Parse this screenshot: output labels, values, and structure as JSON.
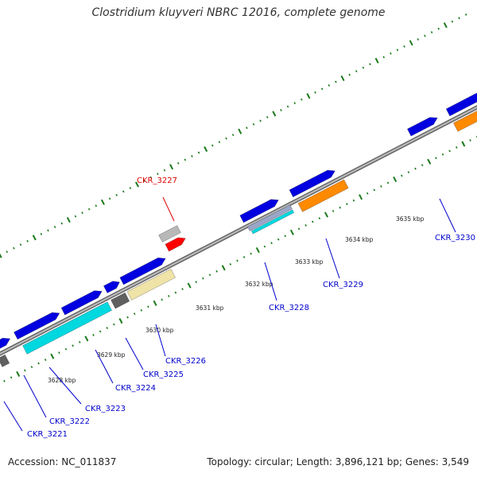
{
  "title": "Clostridium kluyveri NBRC 12016, complete genome",
  "footer": {
    "accession": "Accession: NC_011837",
    "summary": "Topology: circular; Length: 3,896,121 bp; Genes: 3,549"
  },
  "colors": {
    "backbone": "#8a8a8a",
    "tick": "#1a7a1a",
    "blue_gene": "#0000e0",
    "cyan_gene": "#00d8e0",
    "gray_gene": "#606060",
    "light_gray_gene": "#b8b8b8",
    "beige_gene": "#efe3a8",
    "orange_gene": "#ff8a00",
    "red_gene": "#ff0000",
    "label_blue": "#0000cc",
    "label_red": "#dd0000"
  },
  "kbp_labels": [
    "3628 kbp",
    "3629 kbp",
    "3630 kbp",
    "3631 kbp",
    "3632 kbp",
    "3633 kbp",
    "3634 kbp",
    "3635 kbp"
  ],
  "gene_labels": [
    {
      "text": "CKR_3221",
      "color": "blue"
    },
    {
      "text": "CKR_3222",
      "color": "blue"
    },
    {
      "text": "CKR_3223",
      "color": "blue"
    },
    {
      "text": "CKR_3224",
      "color": "blue"
    },
    {
      "text": "CKR_3225",
      "color": "blue"
    },
    {
      "text": "CKR_3226",
      "color": "blue"
    },
    {
      "text": "CKR_3227",
      "color": "red"
    },
    {
      "text": "CKR_3228",
      "color": "blue"
    },
    {
      "text": "CKR_3229",
      "color": "blue"
    },
    {
      "text": "CKR_3230",
      "color": "blue"
    }
  ]
}
